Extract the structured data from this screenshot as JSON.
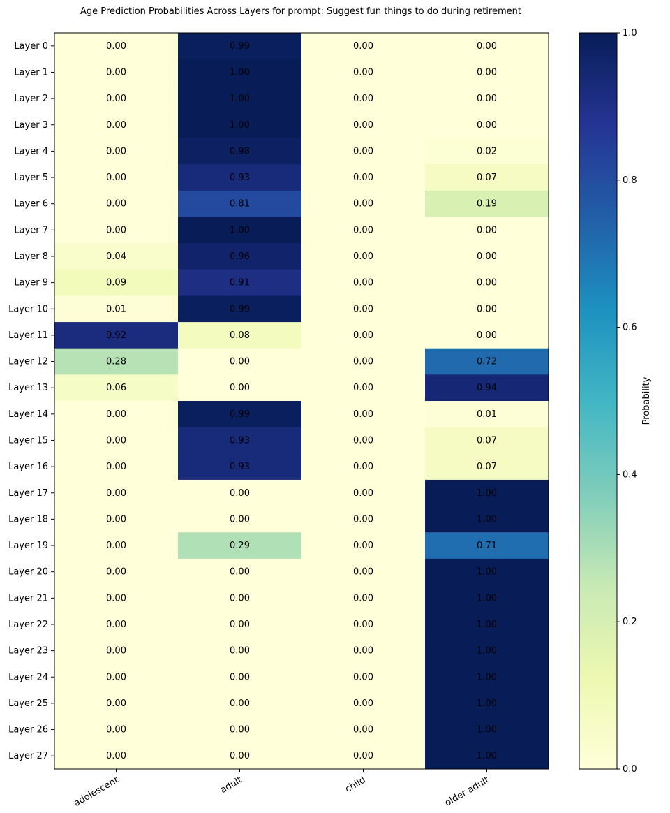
{
  "chart_data": {
    "type": "heatmap",
    "title": "Age Prediction Probabilities Across Layers for prompt: Suggest fun things to do during retirement",
    "xlabel": "",
    "ylabel": "",
    "columns": [
      "adolescent",
      "adult",
      "child",
      "older adult"
    ],
    "rows": [
      "Layer 0",
      "Layer 1",
      "Layer 2",
      "Layer 3",
      "Layer 4",
      "Layer 5",
      "Layer 6",
      "Layer 7",
      "Layer 8",
      "Layer 9",
      "Layer 10",
      "Layer 11",
      "Layer 12",
      "Layer 13",
      "Layer 14",
      "Layer 15",
      "Layer 16",
      "Layer 17",
      "Layer 18",
      "Layer 19",
      "Layer 20",
      "Layer 21",
      "Layer 22",
      "Layer 23",
      "Layer 24",
      "Layer 25",
      "Layer 26",
      "Layer 27"
    ],
    "values": [
      [
        0.0,
        0.99,
        0.0,
        0.0
      ],
      [
        0.0,
        1.0,
        0.0,
        0.0
      ],
      [
        0.0,
        1.0,
        0.0,
        0.0
      ],
      [
        0.0,
        1.0,
        0.0,
        0.0
      ],
      [
        0.0,
        0.98,
        0.0,
        0.02
      ],
      [
        0.0,
        0.93,
        0.0,
        0.07
      ],
      [
        0.0,
        0.81,
        0.0,
        0.19
      ],
      [
        0.0,
        1.0,
        0.0,
        0.0
      ],
      [
        0.04,
        0.96,
        0.0,
        0.0
      ],
      [
        0.09,
        0.91,
        0.0,
        0.0
      ],
      [
        0.01,
        0.99,
        0.0,
        0.0
      ],
      [
        0.92,
        0.08,
        0.0,
        0.0
      ],
      [
        0.28,
        0.0,
        0.0,
        0.72
      ],
      [
        0.06,
        0.0,
        0.0,
        0.94
      ],
      [
        0.0,
        0.99,
        0.0,
        0.01
      ],
      [
        0.0,
        0.93,
        0.0,
        0.07
      ],
      [
        0.0,
        0.93,
        0.0,
        0.07
      ],
      [
        0.0,
        0.0,
        0.0,
        1.0
      ],
      [
        0.0,
        0.0,
        0.0,
        1.0
      ],
      [
        0.0,
        0.29,
        0.0,
        0.71
      ],
      [
        0.0,
        0.0,
        0.0,
        1.0
      ],
      [
        0.0,
        0.0,
        0.0,
        1.0
      ],
      [
        0.0,
        0.0,
        0.0,
        1.0
      ],
      [
        0.0,
        0.0,
        0.0,
        1.0
      ],
      [
        0.0,
        0.0,
        0.0,
        1.0
      ],
      [
        0.0,
        0.0,
        0.0,
        1.0
      ],
      [
        0.0,
        0.0,
        0.0,
        1.0
      ],
      [
        0.0,
        0.0,
        0.0,
        1.0
      ]
    ],
    "value_format": "0.00",
    "colormap": "YlGnBu",
    "colormap_stops": [
      "#ffffd9",
      "#edf8b1",
      "#c7e9b4",
      "#7fcdbb",
      "#41b6c4",
      "#1d91c0",
      "#225ea8",
      "#253494",
      "#081d58"
    ],
    "colorbar": {
      "label": "Probability",
      "range": [
        0.0,
        1.0
      ],
      "ticks": [
        0.0,
        0.2,
        0.4,
        0.6,
        0.8,
        1.0
      ],
      "tick_labels": [
        "0.0",
        "0.2",
        "0.4",
        "0.6",
        "0.8",
        "1.0"
      ]
    },
    "grid": false
  }
}
